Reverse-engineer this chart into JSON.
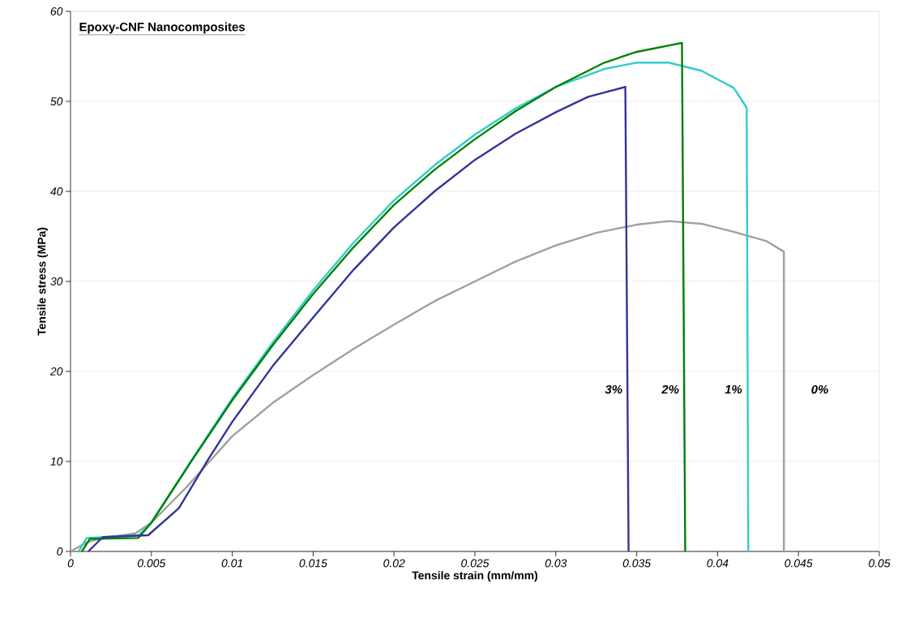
{
  "chart_data": {
    "type": "line",
    "title": "Epoxy-CNF Nanocomposites",
    "xlabel": "Tensile strain (mm/mm)",
    "ylabel": "Tensile stress (MPa)",
    "xlim": [
      0,
      0.05
    ],
    "ylim": [
      0,
      60
    ],
    "xticks": [
      0,
      0.005,
      0.01,
      0.015,
      0.02,
      0.025,
      0.03,
      0.035,
      0.04,
      0.045,
      0.05
    ],
    "yticks": [
      0,
      10,
      20,
      30,
      40,
      50,
      60
    ],
    "grid": "y",
    "marker": "none",
    "line_style": "solid",
    "legend": false,
    "series": [
      {
        "name": "0%",
        "color": "#a0a0a0",
        "x": [
          0,
          0.001,
          0.002,
          0.004,
          0.005,
          0.0072,
          0.01,
          0.0125,
          0.015,
          0.0175,
          0.02,
          0.0225,
          0.025,
          0.0275,
          0.03,
          0.0325,
          0.035,
          0.037,
          0.039,
          0.041,
          0.043,
          0.0441,
          0.0441
        ],
        "values": [
          0,
          1.0,
          1.5,
          2.0,
          3.2,
          7.2,
          12.8,
          16.5,
          19.6,
          22.5,
          25.2,
          27.8,
          30,
          32.2,
          34,
          35.4,
          36.3,
          36.7,
          36.4,
          35.5,
          34.5,
          33.3,
          0
        ]
      },
      {
        "name": "1%",
        "color": "#33cccc",
        "x": [
          0.0005,
          0.001,
          0.0042,
          0.005,
          0.0075,
          0.01,
          0.0125,
          0.015,
          0.0175,
          0.02,
          0.0225,
          0.025,
          0.0275,
          0.03,
          0.033,
          0.035,
          0.037,
          0.039,
          0.041,
          0.0418,
          0.0419
        ],
        "values": [
          0,
          1.5,
          1.8,
          3.2,
          10.2,
          17,
          23.2,
          29,
          34.3,
          39,
          42.9,
          46.3,
          49.2,
          51.6,
          53.6,
          54.3,
          54.3,
          53.4,
          51.5,
          49.3,
          0
        ]
      },
      {
        "name": "2%",
        "color": "#008000",
        "x": [
          0.0007,
          0.0012,
          0.0042,
          0.005,
          0.0075,
          0.01,
          0.0125,
          0.015,
          0.0175,
          0.02,
          0.0225,
          0.025,
          0.0275,
          0.03,
          0.033,
          0.035,
          0.0378,
          0.038
        ],
        "values": [
          0,
          1.4,
          1.5,
          3.2,
          10.1,
          16.8,
          22.9,
          28.6,
          33.8,
          38.5,
          42.4,
          45.8,
          48.9,
          51.6,
          54.3,
          55.5,
          56.5,
          0
        ]
      },
      {
        "name": "3%",
        "color": "#333399",
        "x": [
          0.0011,
          0.002,
          0.0048,
          0.0067,
          0.0085,
          0.01,
          0.0125,
          0.015,
          0.0175,
          0.02,
          0.0225,
          0.025,
          0.0275,
          0.03,
          0.032,
          0.0343,
          0.0345
        ],
        "values": [
          0,
          1.6,
          1.8,
          4.8,
          10.2,
          14.4,
          20.6,
          26,
          31.3,
          36,
          40,
          43.5,
          46.4,
          48.8,
          50.5,
          51.6,
          0
        ]
      }
    ]
  }
}
